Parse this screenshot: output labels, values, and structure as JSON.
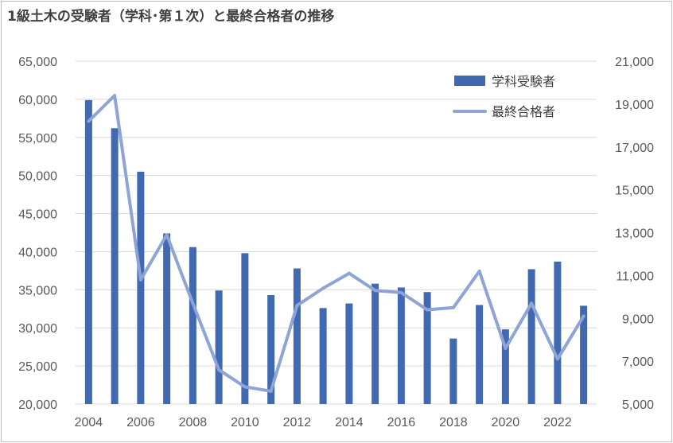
{
  "chart_data": {
    "type": "bar",
    "title": "1級土木の受験者（学科･第１次）と最終合格者の推移",
    "x_tick_labels": [
      "2004",
      "2006",
      "2008",
      "2010",
      "2012",
      "2014",
      "2016",
      "2018",
      "2020",
      "2022"
    ],
    "y_left_ticks": [
      "20,000",
      "25,000",
      "30,000",
      "35,000",
      "40,000",
      "45,000",
      "50,000",
      "55,000",
      "60,000",
      "65,000"
    ],
    "y_right_ticks": [
      "5,000",
      "7,000",
      "9,000",
      "11,000",
      "13,000",
      "15,000",
      "17,000",
      "19,000",
      "21,000"
    ],
    "ylim_left": [
      20000,
      65000
    ],
    "ylim_right": [
      5000,
      21000
    ],
    "years": [
      2004,
      2005,
      2006,
      2007,
      2008,
      2009,
      2010,
      2011,
      2012,
      2013,
      2014,
      2015,
      2016,
      2017,
      2018,
      2019,
      2020,
      2021,
      2022,
      2023
    ],
    "series": [
      {
        "name": "学科受験者",
        "kind": "bar",
        "axis": "left",
        "color": "#4169b2",
        "values": [
          59900,
          56200,
          50500,
          42400,
          40600,
          34900,
          39800,
          34300,
          37800,
          32600,
          33200,
          35800,
          35300,
          34700,
          28600,
          33000,
          29800,
          37700,
          38700,
          32900
        ]
      },
      {
        "name": "最終合格者",
        "kind": "line",
        "axis": "right",
        "color": "#8ea3d6",
        "values": [
          18200,
          19400,
          10800,
          12900,
          9700,
          6600,
          5800,
          5600,
          9600,
          10400,
          11100,
          10300,
          10200,
          9400,
          9500,
          11200,
          7600,
          9700,
          7100,
          9100
        ]
      }
    ],
    "grid": true,
    "legend_position": "top-right"
  }
}
